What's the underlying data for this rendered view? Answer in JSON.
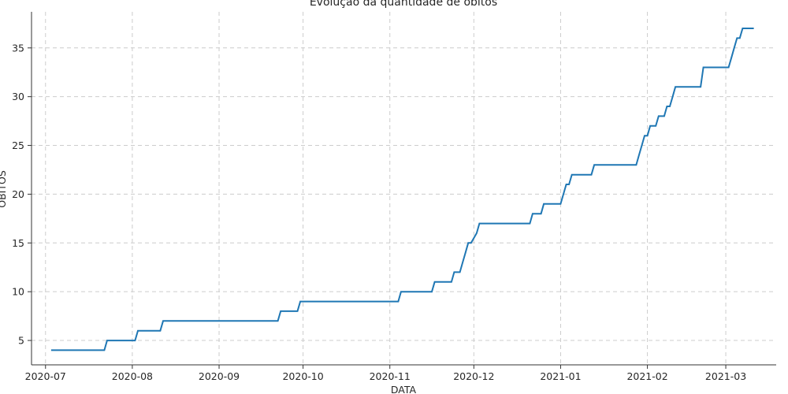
{
  "chart_data": {
    "type": "line",
    "title": "Evolução da quantidade de óbitos",
    "xlabel": "DATA",
    "ylabel": "ÓBITOS",
    "x_axis_type": "date",
    "xlim": [
      "2020-06-26",
      "2021-03-19"
    ],
    "ylim": [
      2.5,
      38.7
    ],
    "x_ticks": [
      "2020-07-01",
      "2020-08-01",
      "2020-09-01",
      "2020-10-01",
      "2020-11-01",
      "2020-12-01",
      "2021-01-01",
      "2021-02-01",
      "2021-03-01"
    ],
    "x_tick_labels": [
      "2020-07",
      "2020-08",
      "2020-09",
      "2020-10",
      "2020-11",
      "2020-12",
      "2021-01",
      "2021-02",
      "2021-03"
    ],
    "y_ticks": [
      5,
      10,
      15,
      20,
      25,
      30,
      35
    ],
    "y_tick_labels": [
      "5",
      "10",
      "15",
      "20",
      "25",
      "30",
      "35"
    ],
    "grid": true,
    "line_color": "#1f77b4",
    "series": [
      {
        "x": [
          "2020-07-03",
          "2020-07-22",
          "2020-07-23",
          "2020-08-02",
          "2020-08-03",
          "2020-08-11",
          "2020-08-12",
          "2020-09-22",
          "2020-09-23",
          "2020-09-29",
          "2020-09-30",
          "2020-11-04",
          "2020-11-05",
          "2020-11-16",
          "2020-11-17",
          "2020-11-23",
          "2020-11-24",
          "2020-11-26",
          "2020-11-27",
          "2020-11-28",
          "2020-11-29",
          "2020-11-30",
          "2020-12-02",
          "2020-12-03",
          "2020-12-21",
          "2020-12-22",
          "2020-12-25",
          "2020-12-26",
          "2021-01-01",
          "2021-01-02",
          "2021-01-03",
          "2021-01-04",
          "2021-01-05",
          "2021-01-12",
          "2021-01-13",
          "2021-01-28",
          "2021-01-29",
          "2021-01-30",
          "2021-01-31",
          "2021-02-01",
          "2021-02-02",
          "2021-02-04",
          "2021-02-05",
          "2021-02-06",
          "2021-02-07",
          "2021-02-08",
          "2021-02-09",
          "2021-02-10",
          "2021-02-11",
          "2021-02-12",
          "2021-02-13",
          "2021-02-20",
          "2021-02-21",
          "2021-03-02",
          "2021-03-03",
          "2021-03-04",
          "2021-03-05",
          "2021-03-06",
          "2021-03-07",
          "2021-03-11"
        ],
        "y": [
          4,
          4,
          5,
          5,
          6,
          6,
          7,
          7,
          8,
          8,
          9,
          9,
          10,
          10,
          11,
          11,
          12,
          12,
          13,
          14,
          15,
          15,
          16,
          17,
          17,
          18,
          18,
          19,
          19,
          20,
          21,
          21,
          22,
          22,
          23,
          23,
          24,
          25,
          26,
          26,
          27,
          27,
          28,
          28,
          28,
          29,
          29,
          30,
          31,
          31,
          31,
          31,
          33,
          33,
          34,
          35,
          36,
          36,
          37,
          37
        ]
      }
    ]
  }
}
